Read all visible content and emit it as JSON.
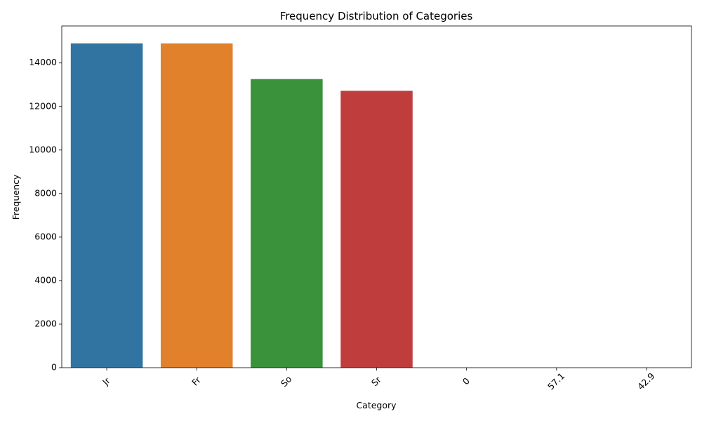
{
  "chart_data": {
    "type": "bar",
    "title": "Frequency Distribution of Categories",
    "xlabel": "Category",
    "ylabel": "Frequency",
    "categories": [
      "Jr",
      "Fr",
      "So",
      "Sr",
      "0",
      "57.1",
      "42.9"
    ],
    "values": [
      14900,
      14900,
      13260,
      12720,
      0,
      0,
      0
    ],
    "colors": [
      "#3274a1",
      "#e1812c",
      "#3a923a",
      "#c03d3e",
      "#9372b2",
      "#845b53",
      "#d684bd"
    ],
    "ylim": [
      0,
      15700
    ],
    "yticks": [
      0,
      2000,
      4000,
      6000,
      8000,
      10000,
      12000,
      14000
    ],
    "xtick_rotation": 45,
    "grid": false,
    "legend": "none"
  }
}
